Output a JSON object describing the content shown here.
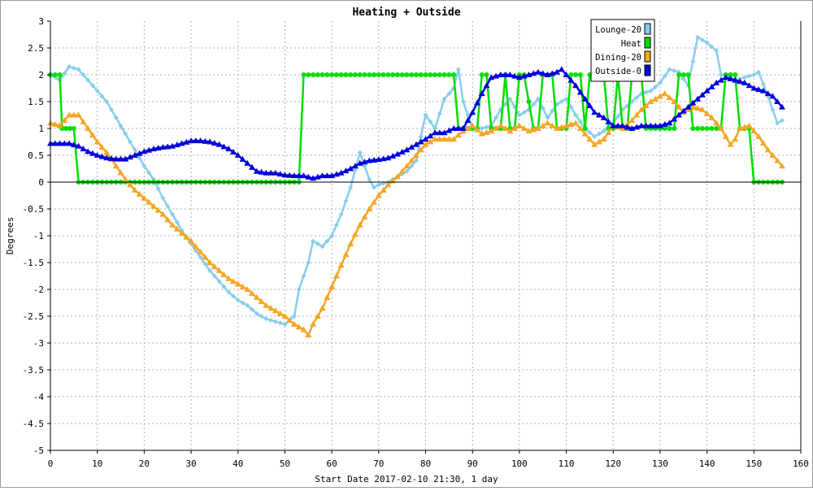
{
  "chart_data": {
    "type": "line",
    "title": "Heating + Outside",
    "xlabel": "Start Date 2017-02-10 21:30, 1 day",
    "ylabel": "Degrees",
    "xlim": [
      0,
      160
    ],
    "ylim": [
      -5,
      3
    ],
    "x_ticks": [
      0,
      10,
      20,
      30,
      40,
      50,
      60,
      70,
      80,
      90,
      100,
      110,
      120,
      130,
      140,
      150,
      160
    ],
    "y_ticks": [
      -5,
      -4.5,
      -4,
      -3.5,
      -3,
      -2.5,
      -2,
      -1.5,
      -1,
      -0.5,
      0,
      0.5,
      1,
      1.5,
      2,
      2.5,
      3
    ],
    "grid": true,
    "legend_position": "top-right",
    "series": [
      {
        "name": "Lounge-20",
        "color": "#87CEEB",
        "marker": "diamond",
        "points": [
          [
            0,
            2.0
          ],
          [
            2,
            1.9
          ],
          [
            4,
            2.15
          ],
          [
            6,
            2.1
          ],
          [
            8,
            1.9
          ],
          [
            10,
            1.7
          ],
          [
            12,
            1.5
          ],
          [
            14,
            1.2
          ],
          [
            16,
            0.9
          ],
          [
            18,
            0.6
          ],
          [
            20,
            0.3
          ],
          [
            22,
            0.05
          ],
          [
            24,
            -0.3
          ],
          [
            26,
            -0.6
          ],
          [
            28,
            -0.9
          ],
          [
            30,
            -1.15
          ],
          [
            32,
            -1.4
          ],
          [
            34,
            -1.65
          ],
          [
            36,
            -1.85
          ],
          [
            38,
            -2.05
          ],
          [
            40,
            -2.2
          ],
          [
            42,
            -2.3
          ],
          [
            44,
            -2.45
          ],
          [
            46,
            -2.55
          ],
          [
            48,
            -2.6
          ],
          [
            50,
            -2.65
          ],
          [
            52,
            -2.5
          ],
          [
            53,
            -2.0
          ],
          [
            55,
            -1.5
          ],
          [
            56,
            -1.1
          ],
          [
            58,
            -1.2
          ],
          [
            60,
            -1.0
          ],
          [
            62,
            -0.6
          ],
          [
            64,
            -0.1
          ],
          [
            66,
            0.55
          ],
          [
            67,
            0.3
          ],
          [
            68,
            0.05
          ],
          [
            69,
            -0.1
          ],
          [
            70,
            -0.05
          ],
          [
            72,
            0.0
          ],
          [
            74,
            0.1
          ],
          [
            76,
            0.2
          ],
          [
            78,
            0.4
          ],
          [
            79,
            0.85
          ],
          [
            80,
            1.25
          ],
          [
            82,
            1.0
          ],
          [
            84,
            1.55
          ],
          [
            86,
            1.75
          ],
          [
            87,
            2.1
          ],
          [
            88,
            1.5
          ],
          [
            90,
            1.0
          ],
          [
            92,
            1.0
          ],
          [
            94,
            1.05
          ],
          [
            96,
            1.35
          ],
          [
            98,
            1.55
          ],
          [
            100,
            1.25
          ],
          [
            102,
            1.35
          ],
          [
            104,
            1.55
          ],
          [
            106,
            1.2
          ],
          [
            108,
            1.45
          ],
          [
            110,
            1.55
          ],
          [
            112,
            1.25
          ],
          [
            114,
            1.0
          ],
          [
            116,
            0.85
          ],
          [
            118,
            0.95
          ],
          [
            120,
            1.1
          ],
          [
            122,
            1.35
          ],
          [
            124,
            1.5
          ],
          [
            126,
            1.65
          ],
          [
            128,
            1.7
          ],
          [
            130,
            1.85
          ],
          [
            132,
            2.1
          ],
          [
            134,
            2.05
          ],
          [
            136,
            1.8
          ],
          [
            138,
            2.7
          ],
          [
            140,
            2.6
          ],
          [
            142,
            2.45
          ],
          [
            143,
            2.0
          ],
          [
            144,
            2.0
          ],
          [
            146,
            1.9
          ],
          [
            148,
            1.95
          ],
          [
            150,
            2.0
          ],
          [
            151,
            2.05
          ],
          [
            153,
            1.6
          ],
          [
            155,
            1.1
          ],
          [
            156,
            1.15
          ]
        ]
      },
      {
        "name": "Heat",
        "color": "#00DD00",
        "marker": "circle",
        "points": [
          [
            0,
            2
          ],
          [
            2,
            2
          ],
          [
            2.5,
            1
          ],
          [
            5,
            1
          ],
          [
            6,
            0
          ],
          [
            53,
            0
          ],
          [
            54,
            2
          ],
          [
            86,
            2
          ],
          [
            87,
            1
          ],
          [
            91,
            1
          ],
          [
            92,
            2
          ],
          [
            93,
            2
          ],
          [
            94,
            1
          ],
          [
            96,
            1
          ],
          [
            97,
            2
          ],
          [
            98,
            1
          ],
          [
            99,
            1
          ],
          [
            100,
            2
          ],
          [
            101,
            2
          ],
          [
            103,
            1
          ],
          [
            104,
            1
          ],
          [
            105,
            2
          ],
          [
            107,
            2
          ],
          [
            108,
            1
          ],
          [
            110,
            1
          ],
          [
            111,
            2
          ],
          [
            113,
            2
          ],
          [
            114,
            1
          ],
          [
            115,
            2
          ],
          [
            118,
            2
          ],
          [
            119,
            1
          ],
          [
            120,
            1
          ],
          [
            121,
            2
          ],
          [
            122,
            1
          ],
          [
            123,
            1
          ],
          [
            124,
            2
          ],
          [
            126,
            2
          ],
          [
            127,
            1
          ],
          [
            133,
            1
          ],
          [
            134,
            2
          ],
          [
            136,
            2
          ],
          [
            137,
            1
          ],
          [
            143,
            1
          ],
          [
            144,
            2
          ],
          [
            146,
            2
          ],
          [
            147,
            1
          ],
          [
            149,
            1
          ],
          [
            150,
            0
          ],
          [
            156,
            0
          ]
        ]
      },
      {
        "name": "Dining-20",
        "color": "#F5A623",
        "marker": "triangle",
        "points": [
          [
            0,
            1.1
          ],
          [
            2,
            1.05
          ],
          [
            4,
            1.25
          ],
          [
            6,
            1.25
          ],
          [
            8,
            1.0
          ],
          [
            10,
            0.75
          ],
          [
            12,
            0.55
          ],
          [
            14,
            0.3
          ],
          [
            16,
            0.05
          ],
          [
            18,
            -0.15
          ],
          [
            20,
            -0.3
          ],
          [
            22,
            -0.45
          ],
          [
            24,
            -0.6
          ],
          [
            26,
            -0.8
          ],
          [
            28,
            -0.95
          ],
          [
            30,
            -1.1
          ],
          [
            32,
            -1.3
          ],
          [
            34,
            -1.5
          ],
          [
            36,
            -1.65
          ],
          [
            38,
            -1.8
          ],
          [
            40,
            -1.9
          ],
          [
            42,
            -2.0
          ],
          [
            44,
            -2.15
          ],
          [
            46,
            -2.3
          ],
          [
            48,
            -2.4
          ],
          [
            50,
            -2.5
          ],
          [
            52,
            -2.65
          ],
          [
            54,
            -2.75
          ],
          [
            55,
            -2.85
          ],
          [
            56,
            -2.65
          ],
          [
            58,
            -2.35
          ],
          [
            60,
            -1.95
          ],
          [
            62,
            -1.55
          ],
          [
            64,
            -1.15
          ],
          [
            66,
            -0.8
          ],
          [
            68,
            -0.5
          ],
          [
            70,
            -0.25
          ],
          [
            72,
            -0.05
          ],
          [
            74,
            0.1
          ],
          [
            76,
            0.3
          ],
          [
            78,
            0.5
          ],
          [
            80,
            0.7
          ],
          [
            82,
            0.8
          ],
          [
            84,
            0.8
          ],
          [
            86,
            0.8
          ],
          [
            88,
            0.95
          ],
          [
            90,
            1.05
          ],
          [
            92,
            0.9
          ],
          [
            94,
            0.95
          ],
          [
            96,
            1.05
          ],
          [
            98,
            0.95
          ],
          [
            100,
            1.05
          ],
          [
            102,
            0.95
          ],
          [
            104,
            1.0
          ],
          [
            106,
            1.1
          ],
          [
            108,
            1.0
          ],
          [
            110,
            1.05
          ],
          [
            112,
            1.1
          ],
          [
            114,
            0.9
          ],
          [
            116,
            0.7
          ],
          [
            118,
            0.8
          ],
          [
            120,
            1.05
          ],
          [
            122,
            1.0
          ],
          [
            124,
            1.15
          ],
          [
            126,
            1.35
          ],
          [
            128,
            1.5
          ],
          [
            130,
            1.6
          ],
          [
            131,
            1.65
          ],
          [
            133,
            1.5
          ],
          [
            135,
            1.3
          ],
          [
            137,
            1.4
          ],
          [
            139,
            1.35
          ],
          [
            141,
            1.2
          ],
          [
            143,
            1.0
          ],
          [
            145,
            0.7
          ],
          [
            146,
            0.8
          ],
          [
            147,
            1.0
          ],
          [
            149,
            1.05
          ],
          [
            151,
            0.85
          ],
          [
            153,
            0.6
          ],
          [
            155,
            0.4
          ],
          [
            156,
            0.3
          ]
        ]
      },
      {
        "name": "Outside-0",
        "color": "#0000DD",
        "marker": "triangle",
        "points": [
          [
            0,
            0.72
          ],
          [
            4,
            0.72
          ],
          [
            6,
            0.67
          ],
          [
            8,
            0.57
          ],
          [
            10,
            0.5
          ],
          [
            12,
            0.45
          ],
          [
            14,
            0.43
          ],
          [
            16,
            0.43
          ],
          [
            18,
            0.5
          ],
          [
            20,
            0.57
          ],
          [
            22,
            0.62
          ],
          [
            24,
            0.65
          ],
          [
            26,
            0.67
          ],
          [
            28,
            0.72
          ],
          [
            30,
            0.77
          ],
          [
            32,
            0.77
          ],
          [
            34,
            0.75
          ],
          [
            36,
            0.7
          ],
          [
            38,
            0.62
          ],
          [
            40,
            0.5
          ],
          [
            42,
            0.35
          ],
          [
            44,
            0.2
          ],
          [
            46,
            0.17
          ],
          [
            48,
            0.17
          ],
          [
            50,
            0.13
          ],
          [
            52,
            0.12
          ],
          [
            54,
            0.12
          ],
          [
            56,
            0.07
          ],
          [
            58,
            0.12
          ],
          [
            60,
            0.12
          ],
          [
            62,
            0.17
          ],
          [
            64,
            0.25
          ],
          [
            66,
            0.35
          ],
          [
            68,
            0.4
          ],
          [
            70,
            0.42
          ],
          [
            72,
            0.45
          ],
          [
            74,
            0.52
          ],
          [
            76,
            0.6
          ],
          [
            78,
            0.7
          ],
          [
            80,
            0.8
          ],
          [
            82,
            0.92
          ],
          [
            84,
            0.92
          ],
          [
            86,
            1.0
          ],
          [
            88,
            1.0
          ],
          [
            90,
            1.3
          ],
          [
            92,
            1.65
          ],
          [
            94,
            1.95
          ],
          [
            96,
            2.0
          ],
          [
            98,
            2.0
          ],
          [
            100,
            1.95
          ],
          [
            102,
            2.0
          ],
          [
            104,
            2.05
          ],
          [
            106,
            2.0
          ],
          [
            108,
            2.05
          ],
          [
            109,
            2.1
          ],
          [
            110,
            2.0
          ],
          [
            112,
            1.8
          ],
          [
            114,
            1.55
          ],
          [
            116,
            1.3
          ],
          [
            118,
            1.2
          ],
          [
            120,
            1.05
          ],
          [
            122,
            1.05
          ],
          [
            124,
            1.0
          ],
          [
            126,
            1.05
          ],
          [
            128,
            1.05
          ],
          [
            130,
            1.05
          ],
          [
            132,
            1.1
          ],
          [
            134,
            1.25
          ],
          [
            136,
            1.4
          ],
          [
            138,
            1.55
          ],
          [
            140,
            1.7
          ],
          [
            142,
            1.85
          ],
          [
            144,
            1.95
          ],
          [
            146,
            1.9
          ],
          [
            148,
            1.85
          ],
          [
            150,
            1.75
          ],
          [
            152,
            1.7
          ],
          [
            154,
            1.6
          ],
          [
            156,
            1.4
          ]
        ]
      }
    ]
  }
}
